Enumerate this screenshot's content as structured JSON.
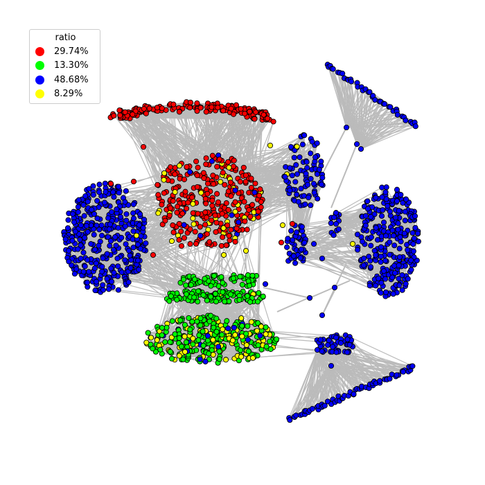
{
  "legend": {
    "title": "ratio",
    "entries": [
      {
        "label": "29.74%",
        "color": "#ff0000",
        "class": "red"
      },
      {
        "label": "13.30%",
        "color": "#00ff00",
        "class": "green"
      },
      {
        "label": "48.68%",
        "color": "#0000ff",
        "class": "blue"
      },
      {
        "label": "8.29%",
        "color": "#ffff00",
        "class": "yellow"
      }
    ]
  },
  "style": {
    "edge_color": "#bbbbbb",
    "node_outline": "#000000",
    "background": "#ffffff"
  },
  "chart_data": {
    "type": "network",
    "node_category_share": {
      "red": 29.74,
      "green": 13.3,
      "blue": 48.68,
      "yellow": 8.29
    }
  }
}
